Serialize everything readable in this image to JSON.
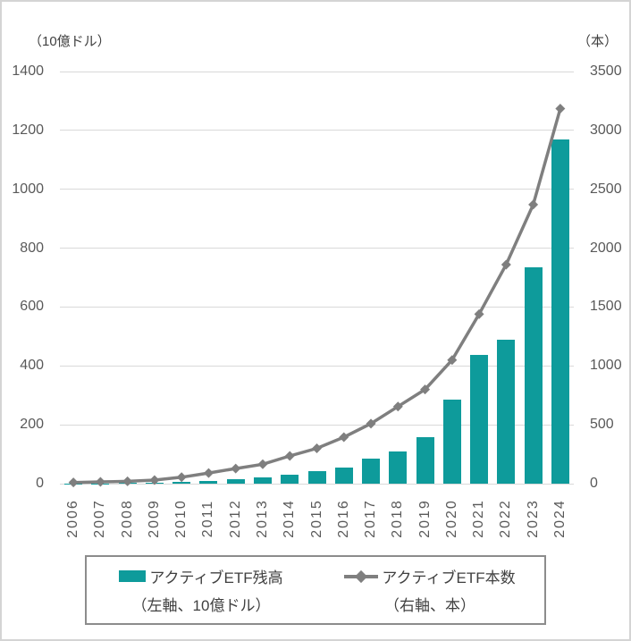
{
  "axes": {
    "left_unit": "（10億ドル）",
    "right_unit": "（本）"
  },
  "chart_data": {
    "type": "bar",
    "subtype": "combo-bar-line-dual-axis",
    "title": "",
    "categories": [
      "2006",
      "2007",
      "2008",
      "2009",
      "2010",
      "2011",
      "2012",
      "2013",
      "2014",
      "2015",
      "2016",
      "2017",
      "2018",
      "2019",
      "2020",
      "2021",
      "2022",
      "2023",
      "2024"
    ],
    "series": [
      {
        "name": "アクティブETF残高",
        "type": "bar",
        "axis": "left",
        "values": [
          0.5,
          1,
          2,
          3,
          5,
          9,
          14,
          21,
          31,
          43,
          55,
          84,
          108,
          157,
          285,
          437,
          488,
          735,
          1170
        ]
      },
      {
        "name": "アクティブETF本数",
        "type": "line",
        "axis": "right",
        "values": [
          10,
          15,
          20,
          30,
          55,
          90,
          128,
          165,
          235,
          300,
          395,
          510,
          655,
          800,
          1050,
          1440,
          1860,
          2370,
          3185
        ]
      }
    ],
    "left_axis": {
      "label": "（10億ドル）",
      "min": 0,
      "max": 1400,
      "step": 200
    },
    "right_axis": {
      "label": "（本）",
      "min": 0,
      "max": 3500,
      "step": 500
    },
    "grid": true,
    "legend_position": "bottom"
  },
  "legend": {
    "items": [
      {
        "label": "アクティブETF残高",
        "sublabel": "（左軸、10億ドル）",
        "swatch": "bar"
      },
      {
        "label": "アクティブETF本数",
        "sublabel": "（右軸、本）",
        "swatch": "line"
      }
    ]
  },
  "colors": {
    "bar": "#0e9b9b",
    "line": "#7f7f7f",
    "grid": "#d9d9d9",
    "tick_text": "#595959",
    "border": "#d4d4d4",
    "legend_border": "#8c8c8c"
  }
}
